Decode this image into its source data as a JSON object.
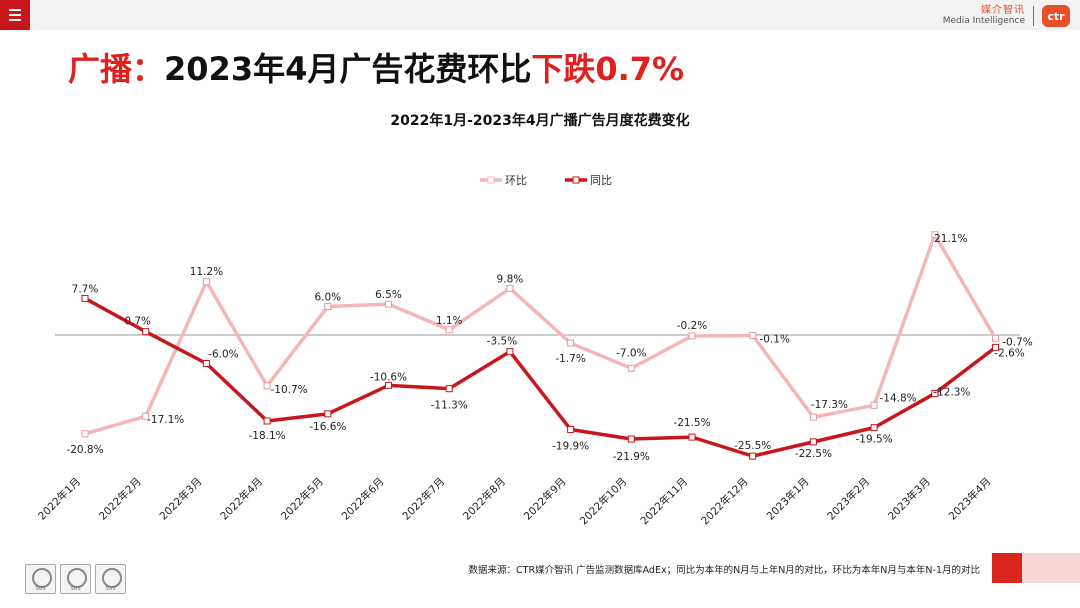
{
  "header": {
    "brand_cn": "媒介智讯",
    "brand_en": "Media Intelligence",
    "brand_logo": "ctr"
  },
  "headline": {
    "part1": "广播：",
    "part2": "2023年4月广告花费环比",
    "part3": "下跌0.7%"
  },
  "footer": {
    "source_note": "数据来源：CTR媒介智讯 广告监测数据库AdEx；同比为本年的N月与上年N月的对比，环比为本年N月与本年N-1月的对比",
    "seals": [
      "SGS",
      "SGS",
      "SGS"
    ]
  },
  "colors": {
    "accent_red": "#d9251c",
    "mom_series": "#f4b6b6",
    "yoy_series": "#c8161d"
  },
  "chart_data": {
    "type": "line",
    "title": "2022年1月-2023年4月广播广告月度花费变化",
    "categories": [
      "2022年1月",
      "2022年2月",
      "2022年3月",
      "2022年4月",
      "2022年5月",
      "2022年6月",
      "2022年7月",
      "2022年8月",
      "2022年9月",
      "2022年10月",
      "2022年11月",
      "2022年12月",
      "2023年1月",
      "2023年2月",
      "2023年3月",
      "2023年4月"
    ],
    "series": [
      {
        "name": "环比",
        "color": "#f4b6b6",
        "values": [
          -20.8,
          -17.1,
          11.2,
          -10.7,
          6.0,
          6.5,
          1.1,
          9.8,
          -1.7,
          -7.0,
          -0.2,
          -0.1,
          -17.3,
          -14.8,
          21.1,
          -0.7
        ],
        "labels": [
          "-20.8%",
          "-17.1%",
          "11.2%",
          "-10.7%",
          "6.0%",
          "6.5%",
          "1.1%",
          "9.8%",
          "-1.7%",
          "-7.0%",
          "-0.2%",
          "-0.1%",
          "-17.3%",
          "-14.8%",
          "21.1%",
          "-0.7%"
        ]
      },
      {
        "name": "同比",
        "color": "#c8161d",
        "values": [
          7.7,
          0.7,
          -6.0,
          -18.1,
          -16.6,
          -10.6,
          -11.3,
          -3.5,
          -19.9,
          -21.9,
          -21.5,
          -25.5,
          -22.5,
          -19.5,
          -12.3,
          -2.6
        ],
        "labels": [
          "7.7%",
          "0.7%",
          "-6.0%",
          "-18.1%",
          "-16.6%",
          "-10.6%",
          "-11.3%",
          "-3.5%",
          "-19.9%",
          "-21.9%",
          "-21.5%",
          "-25.5%",
          "-22.5%",
          "-19.5%",
          "-12.3%",
          "-2.6%"
        ]
      }
    ],
    "ylim": [
      -30,
      30
    ],
    "legend": "top-center",
    "grid": false
  }
}
